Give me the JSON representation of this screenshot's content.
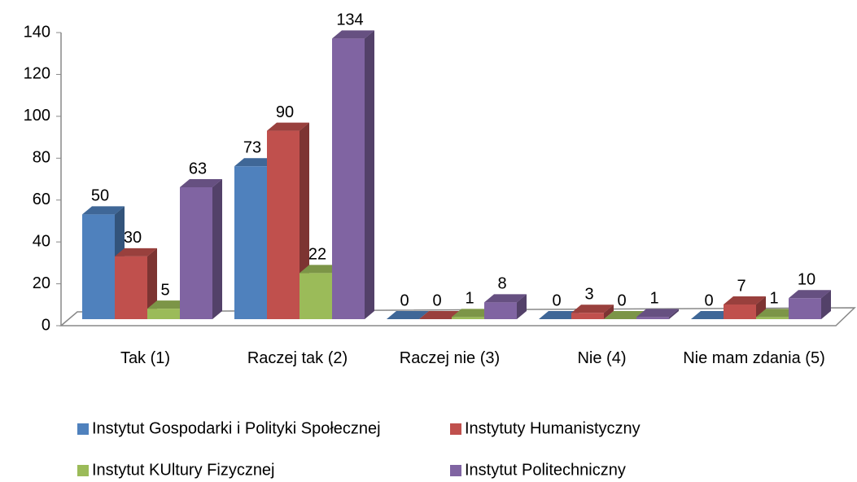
{
  "chart_data": {
    "type": "bar3d",
    "categories": [
      "Tak  (1)",
      "Raczej tak (2)",
      "Raczej  nie  (3)",
      "Nie (4)",
      "Nie mam zdania (5)"
    ],
    "series": [
      {
        "name": "Instytut Gospodarki i Polityki Społecznej",
        "color": "#4f81bd",
        "values": [
          50,
          73,
          0,
          0,
          0
        ]
      },
      {
        "name": "Instytuty Humanistyczny",
        "color": "#c0504d",
        "values": [
          30,
          90,
          0,
          3,
          7
        ]
      },
      {
        "name": "Instytut KUltury Fizycznej",
        "color": "#9bbb59",
        "values": [
          5,
          22,
          1,
          0,
          1
        ]
      },
      {
        "name": "Instytut Politechniczny",
        "color": "#8064a2",
        "values": [
          63,
          134,
          8,
          1,
          10
        ]
      }
    ],
    "ylim": [
      0,
      140
    ],
    "yticks": [
      0,
      20,
      40,
      60,
      80,
      100,
      120,
      140
    ],
    "legend": "bottom"
  }
}
